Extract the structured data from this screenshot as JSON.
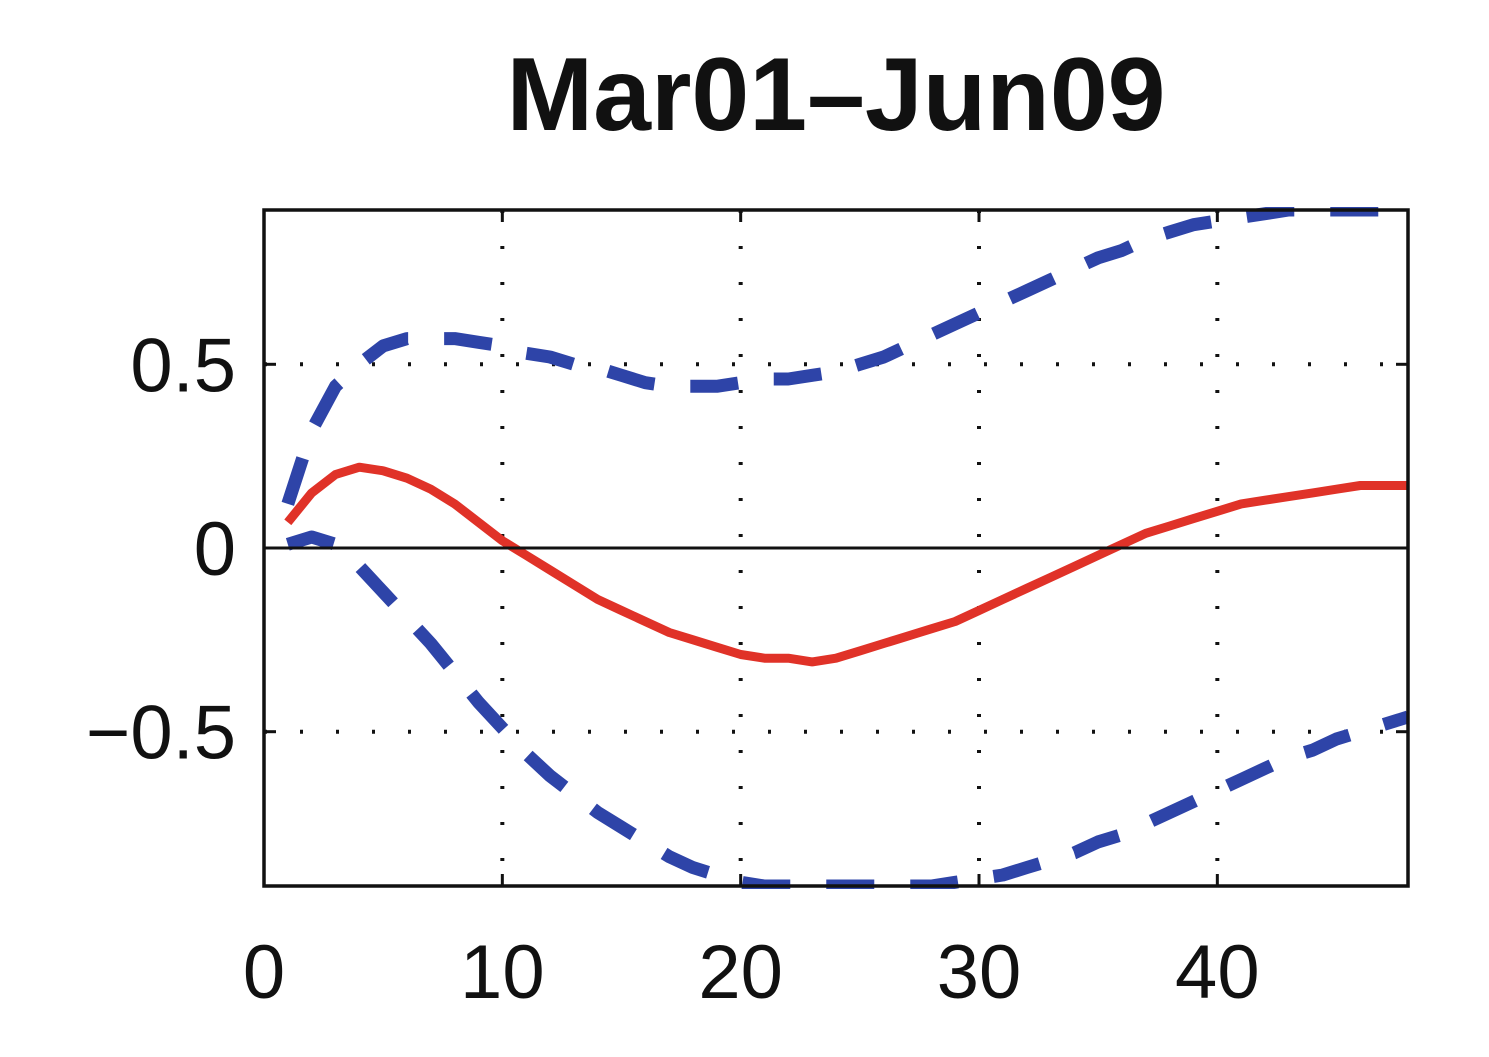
{
  "chart_data": {
    "type": "line",
    "title": "Mar01–Jun09",
    "xlabel": "",
    "ylabel": "",
    "xlim": [
      0,
      48
    ],
    "ylim": [
      -0.92,
      0.92
    ],
    "x_ticks": [
      0,
      10,
      20,
      30,
      40
    ],
    "x_tick_labels": [
      "0",
      "10",
      "20",
      "30",
      "40"
    ],
    "y_ticks": [
      -0.5,
      0,
      0.5
    ],
    "y_tick_labels": [
      "−0.5",
      "0",
      "0.5"
    ],
    "grid": true,
    "zero_line": true,
    "series": [
      {
        "role": "estimate",
        "style": "solid",
        "color": "#e03228",
        "x": [
          1,
          2,
          3,
          4,
          5,
          6,
          7,
          8,
          9,
          10,
          11,
          12,
          13,
          14,
          15,
          16,
          17,
          18,
          19,
          20,
          21,
          22,
          23,
          24,
          25,
          26,
          27,
          28,
          29,
          30,
          31,
          32,
          33,
          34,
          35,
          36,
          37,
          38,
          39,
          40,
          41,
          42,
          43,
          44,
          45,
          46,
          47,
          48
        ],
        "y": [
          0.07,
          0.15,
          0.2,
          0.22,
          0.21,
          0.19,
          0.16,
          0.12,
          0.07,
          0.02,
          -0.02,
          -0.06,
          -0.1,
          -0.14,
          -0.17,
          -0.2,
          -0.23,
          -0.25,
          -0.27,
          -0.29,
          -0.3,
          -0.3,
          -0.31,
          -0.3,
          -0.28,
          -0.26,
          -0.24,
          -0.22,
          -0.2,
          -0.17,
          -0.14,
          -0.11,
          -0.08,
          -0.05,
          -0.02,
          0.01,
          0.04,
          0.06,
          0.08,
          0.1,
          0.12,
          0.13,
          0.14,
          0.15,
          0.16,
          0.17,
          0.17,
          0.17
        ]
      },
      {
        "role": "upper-band",
        "style": "dashed",
        "color": "#2e44a8",
        "x": [
          1,
          2,
          3,
          4,
          5,
          6,
          7,
          8,
          9,
          10,
          11,
          12,
          13,
          14,
          15,
          16,
          17,
          18,
          19,
          20,
          21,
          22,
          23,
          24,
          25,
          26,
          27,
          28,
          29,
          30,
          31,
          32,
          33,
          34,
          35,
          36,
          37,
          38,
          39,
          40,
          41,
          42,
          43,
          44,
          45,
          46,
          47,
          48
        ],
        "y": [
          0.12,
          0.32,
          0.44,
          0.5,
          0.55,
          0.57,
          0.57,
          0.57,
          0.56,
          0.55,
          0.53,
          0.52,
          0.5,
          0.49,
          0.47,
          0.45,
          0.44,
          0.44,
          0.44,
          0.45,
          0.46,
          0.46,
          0.47,
          0.48,
          0.5,
          0.52,
          0.55,
          0.58,
          0.61,
          0.64,
          0.67,
          0.7,
          0.73,
          0.76,
          0.79,
          0.81,
          0.84,
          0.86,
          0.88,
          0.89,
          0.9,
          0.91,
          0.92,
          0.92,
          0.92,
          0.92,
          0.92,
          0.92
        ]
      },
      {
        "role": "lower-band",
        "style": "dashed",
        "color": "#2e44a8",
        "x": [
          1,
          2,
          3,
          4,
          5,
          6,
          7,
          8,
          9,
          10,
          11,
          12,
          13,
          14,
          15,
          16,
          17,
          18,
          19,
          20,
          21,
          22,
          23,
          24,
          25,
          26,
          27,
          28,
          29,
          30,
          31,
          32,
          33,
          34,
          35,
          36,
          37,
          38,
          39,
          40,
          41,
          42,
          43,
          44,
          45,
          46,
          47,
          48
        ],
        "y": [
          0.01,
          0.03,
          0.01,
          -0.05,
          -0.12,
          -0.19,
          -0.26,
          -0.34,
          -0.42,
          -0.49,
          -0.56,
          -0.62,
          -0.67,
          -0.72,
          -0.76,
          -0.8,
          -0.84,
          -0.87,
          -0.89,
          -0.91,
          -0.92,
          -0.92,
          -0.92,
          -0.92,
          -0.92,
          -0.92,
          -0.92,
          -0.92,
          -0.91,
          -0.9,
          -0.89,
          -0.87,
          -0.85,
          -0.83,
          -0.8,
          -0.78,
          -0.75,
          -0.72,
          -0.69,
          -0.66,
          -0.63,
          -0.6,
          -0.57,
          -0.55,
          -0.52,
          -0.5,
          -0.48,
          -0.46
        ]
      }
    ]
  }
}
